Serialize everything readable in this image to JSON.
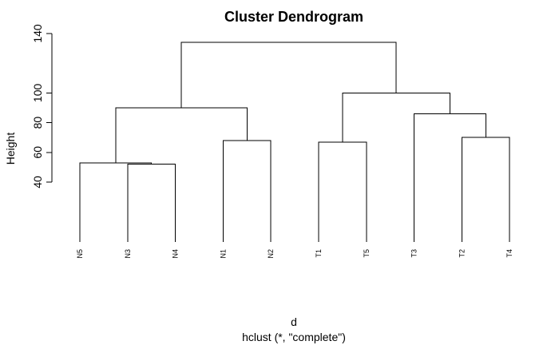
{
  "chart_data": {
    "type": "dendrogram",
    "title": "Cluster Dendrogram",
    "xlabel": "d",
    "subtitle": "hclust (*, \"complete\")",
    "ylabel": "Height",
    "yticks": [
      40,
      60,
      80,
      100,
      140
    ],
    "ylim": [
      0,
      140
    ],
    "leaves": [
      "N5",
      "N3",
      "N4",
      "N1",
      "N2",
      "T1",
      "T5",
      "T3",
      "T2",
      "T4"
    ],
    "merges": [
      {
        "left": "N3",
        "right": "N4",
        "height": 52
      },
      {
        "left": "N5",
        "right": "(N3,N4)",
        "height": 53
      },
      {
        "left": "N1",
        "right": "N2",
        "height": 68
      },
      {
        "left": "T1",
        "right": "T5",
        "height": 67
      },
      {
        "left": "T2",
        "right": "T4",
        "height": 70
      },
      {
        "left": "T3",
        "right": "(T2,T4)",
        "height": 86
      },
      {
        "left": "(N5,N3,N4)",
        "right": "(N1,N2)",
        "height": 90
      },
      {
        "left": "(T1,T5)",
        "right": "(T3,T2,T4)",
        "height": 100
      },
      {
        "left": "N cluster",
        "right": "T cluster",
        "height": 134
      }
    ]
  }
}
